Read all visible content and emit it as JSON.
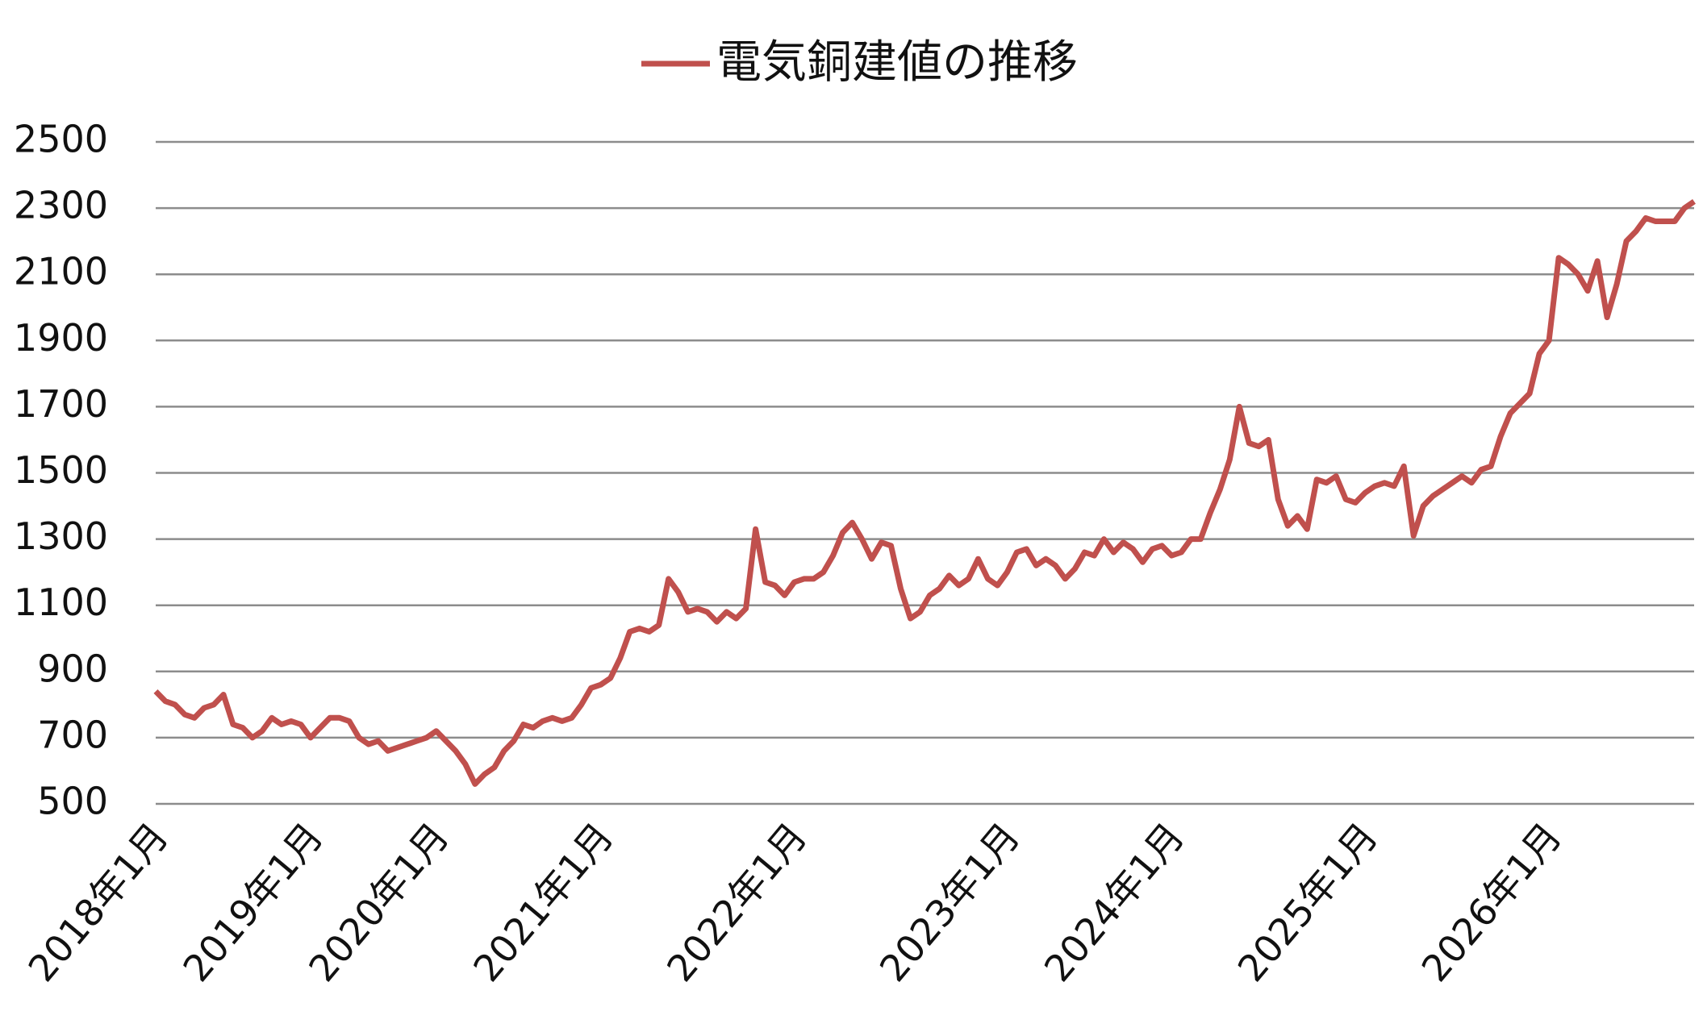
{
  "chart_data": {
    "type": "line",
    "categories": [
      "2018年1月",
      null,
      null,
      null,
      null,
      null,
      null,
      null,
      null,
      null,
      null,
      null,
      null,
      null,
      null,
      null,
      "2019年1月",
      null,
      null,
      null,
      null,
      null,
      null,
      null,
      null,
      null,
      null,
      null,
      null,
      "2020年1月",
      null,
      null,
      null,
      null,
      null,
      null,
      null,
      null,
      null,
      null,
      null,
      null,
      null,
      null,
      null,
      null,
      "2021年1月",
      null,
      null,
      null,
      null,
      null,
      null,
      null,
      null,
      null,
      null,
      null,
      null,
      null,
      null,
      null,
      null,
      null,
      null,
      null,
      "2022年1月",
      null,
      null,
      null,
      null,
      null,
      null,
      null,
      null,
      null,
      null,
      null,
      null,
      null,
      null,
      null,
      null,
      null,
      null,
      null,
      null,
      null,
      "2023年1月",
      null,
      null,
      null,
      null,
      null,
      null,
      null,
      null,
      null,
      null,
      null,
      null,
      null,
      null,
      null,
      null,
      "2024年1月",
      null,
      null,
      null,
      null,
      null,
      null,
      null,
      null,
      null,
      null,
      null,
      null,
      null,
      null,
      null,
      null,
      null,
      null,
      null,
      "2025年1月",
      null,
      null,
      null,
      null,
      null,
      null,
      null,
      null,
      null,
      null,
      null,
      null,
      null,
      null,
      null,
      null,
      null,
      null,
      "2026年1月",
      null,
      null,
      null,
      null,
      null,
      null,
      null,
      null,
      null,
      null,
      null,
      null,
      null,
      null,
      null
    ],
    "series": [
      {
        "name": "電気銅建値の推移",
        "color": "#c0504d",
        "values": [
          840,
          810,
          800,
          770,
          760,
          790,
          800,
          830,
          740,
          730,
          700,
          720,
          760,
          740,
          750,
          740,
          700,
          730,
          760,
          760,
          750,
          700,
          680,
          690,
          660,
          670,
          680,
          690,
          700,
          720,
          690,
          660,
          620,
          560,
          590,
          610,
          660,
          690,
          740,
          730,
          750,
          760,
          750,
          760,
          800,
          850,
          860,
          880,
          940,
          1020,
          1030,
          1020,
          1040,
          1180,
          1140,
          1080,
          1090,
          1080,
          1050,
          1080,
          1060,
          1090,
          1330,
          1170,
          1160,
          1130,
          1170,
          1180,
          1180,
          1200,
          1250,
          1320,
          1350,
          1300,
          1240,
          1290,
          1280,
          1150,
          1060,
          1080,
          1130,
          1150,
          1190,
          1160,
          1180,
          1240,
          1180,
          1160,
          1200,
          1260,
          1270,
          1220,
          1240,
          1220,
          1180,
          1210,
          1260,
          1250,
          1300,
          1260,
          1290,
          1270,
          1230,
          1270,
          1280,
          1250,
          1260,
          1300,
          1300,
          1380,
          1450,
          1540,
          1700,
          1590,
          1580,
          1600,
          1420,
          1340,
          1370,
          1330,
          1480,
          1470,
          1490,
          1420,
          1410,
          1440,
          1460,
          1470,
          1460,
          1520,
          1310,
          1400,
          1430,
          1450,
          1470,
          1490,
          1470,
          1510,
          1520,
          1610,
          1680,
          1710,
          1740,
          1860,
          1900,
          2150,
          2130,
          2100,
          2050,
          2140,
          1970,
          2070,
          2200,
          2230,
          2270,
          2260,
          2260,
          2260,
          2300,
          2320
        ]
      }
    ],
    "ylim": [
      500,
      2500
    ],
    "yticks": [
      500,
      700,
      900,
      1100,
      1300,
      1500,
      1700,
      1900,
      2100,
      2300,
      2500
    ],
    "grid": true,
    "legend": "top"
  }
}
